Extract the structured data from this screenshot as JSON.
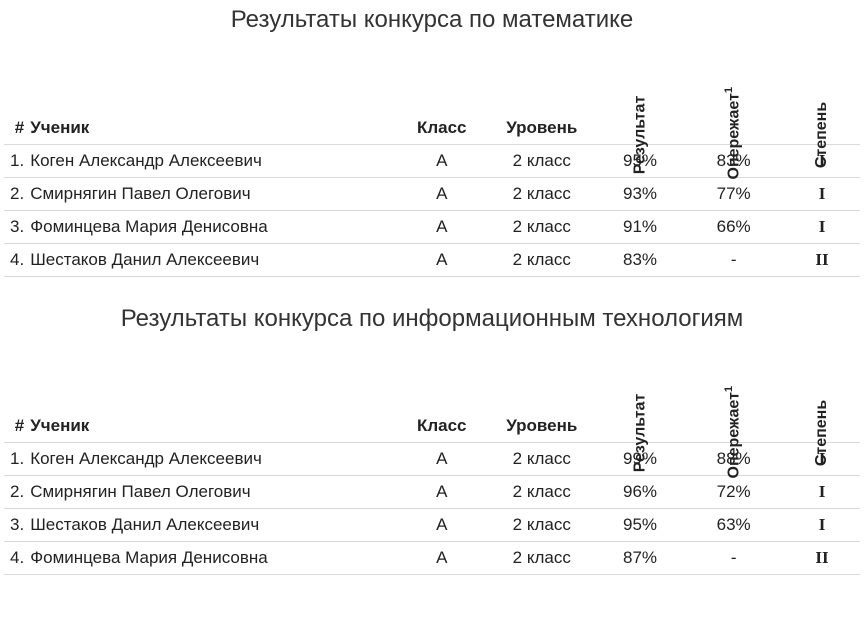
{
  "colors": {
    "background": "#ffffff",
    "text": "#222222",
    "title": "#333333",
    "row_border": "#d9d9d9"
  },
  "typography": {
    "title_fontsize": 24,
    "body_fontsize": 17,
    "rotated_header_fontsize": 16,
    "font_family": "Trebuchet MS"
  },
  "columns": {
    "index": "#",
    "student": "Ученик",
    "klass": "Класс",
    "level": "Уровень",
    "result": "Результат",
    "leads": "Опережает",
    "leads_sup": "1",
    "degree": "Степень"
  },
  "sections": [
    {
      "title": "Результаты конкурса по математике",
      "rows": [
        {
          "n": "1.",
          "name": "Коген Александр Алексеевич",
          "klass": "А",
          "level": "2 класс",
          "result": "95%",
          "leads": "83%",
          "degree": "I"
        },
        {
          "n": "2.",
          "name": "Смирнягин Павел Олегович",
          "klass": "А",
          "level": "2 класс",
          "result": "93%",
          "leads": "77%",
          "degree": "I"
        },
        {
          "n": "3.",
          "name": "Фоминцева Мария Денисовна",
          "klass": "А",
          "level": "2 класс",
          "result": "91%",
          "leads": "66%",
          "degree": "I"
        },
        {
          "n": "4.",
          "name": "Шестаков Данил Алексеевич",
          "klass": "А",
          "level": "2 класс",
          "result": "83%",
          "leads": "-",
          "degree": "II"
        }
      ]
    },
    {
      "title": "Результаты конкурса по информационным технологиям",
      "rows": [
        {
          "n": "1.",
          "name": "Коген Александр Алексеевич",
          "klass": "А",
          "level": "2 класс",
          "result": "99%",
          "leads": "88%",
          "degree": "I"
        },
        {
          "n": "2.",
          "name": "Смирнягин Павел Олегович",
          "klass": "А",
          "level": "2 класс",
          "result": "96%",
          "leads": "72%",
          "degree": "I"
        },
        {
          "n": "3.",
          "name": "Шестаков Данил Алексеевич",
          "klass": "А",
          "level": "2 класс",
          "result": "95%",
          "leads": "63%",
          "degree": "I"
        },
        {
          "n": "4.",
          "name": "Фоминцева Мария Денисовна",
          "klass": "А",
          "level": "2 класс",
          "result": "87%",
          "leads": "-",
          "degree": "II"
        }
      ]
    }
  ]
}
